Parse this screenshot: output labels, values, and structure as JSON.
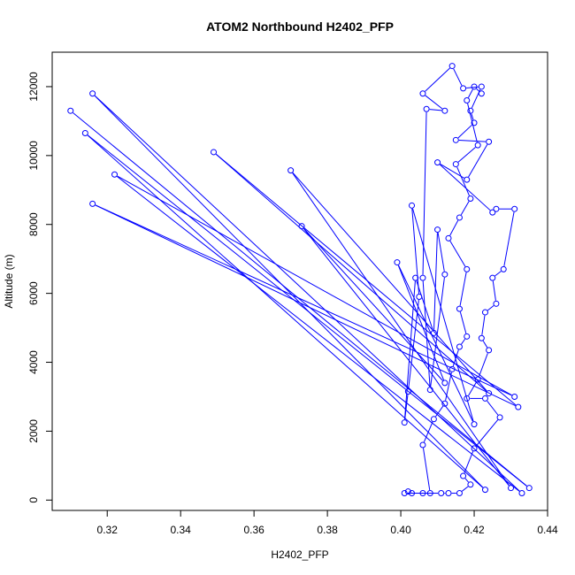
{
  "chart_data": {
    "type": "scatter",
    "title": "ATOM2 Northbound H2402_PFP",
    "xlabel": "H2402_PFP",
    "ylabel": "Altitude (m)",
    "xlim": [
      0.305,
      0.44
    ],
    "ylim": [
      -300,
      13000
    ],
    "xticks": [
      0.32,
      0.34,
      0.36,
      0.38,
      0.4,
      0.42,
      0.44
    ],
    "xtick_labels": [
      "0.32",
      "0.34",
      "0.36",
      "0.38",
      "0.40",
      "0.42",
      "0.44"
    ],
    "yticks": [
      0,
      2000,
      4000,
      6000,
      8000,
      10000,
      12000
    ],
    "ytick_labels": [
      "0",
      "2000",
      "4000",
      "6000",
      "8000",
      "10000",
      "12000"
    ],
    "grid": false,
    "legend": "none",
    "series_color": "#0000ff",
    "series": [
      {
        "points": [
          [
            0.31,
            11300
          ],
          [
            0.435,
            350
          ],
          [
            0.314,
            10650
          ],
          [
            0.423,
            300
          ],
          [
            0.316,
            11800
          ],
          [
            0.433,
            200
          ],
          [
            0.322,
            9450
          ],
          [
            0.431,
            3000
          ],
          [
            0.316,
            8600
          ],
          [
            0.432,
            2700
          ],
          [
            0.349,
            10100
          ],
          [
            0.424,
            3100
          ],
          [
            0.37,
            9570
          ],
          [
            0.43,
            350
          ],
          [
            0.373,
            7950
          ],
          [
            0.412,
            3400
          ],
          [
            0.399,
            6900
          ],
          [
            0.42,
            2200
          ],
          [
            0.403,
            8550
          ],
          [
            0.405,
            5900
          ],
          [
            0.402,
            3150
          ],
          [
            0.401,
            2250
          ],
          [
            0.404,
            6450
          ],
          [
            0.409,
            4850
          ],
          [
            0.41,
            7850
          ],
          [
            0.412,
            6550
          ],
          [
            0.408,
            3200
          ],
          [
            0.406,
            6450
          ],
          [
            0.407,
            11350
          ],
          [
            0.412,
            11300
          ],
          [
            0.406,
            11800
          ],
          [
            0.414,
            12600
          ],
          [
            0.417,
            11950
          ],
          [
            0.422,
            12000
          ],
          [
            0.419,
            11300
          ],
          [
            0.42,
            10950
          ],
          [
            0.415,
            10450
          ],
          [
            0.424,
            10400
          ],
          [
            0.418,
            9300
          ],
          [
            0.41,
            9800
          ],
          [
            0.425,
            8350
          ],
          [
            0.426,
            8450
          ],
          [
            0.431,
            8450
          ],
          [
            0.428,
            6700
          ],
          [
            0.425,
            6450
          ],
          [
            0.426,
            5700
          ],
          [
            0.423,
            5450
          ],
          [
            0.422,
            4700
          ],
          [
            0.424,
            4350
          ],
          [
            0.421,
            3500
          ],
          [
            0.418,
            2950
          ],
          [
            0.423,
            2950
          ],
          [
            0.427,
            2400
          ],
          [
            0.42,
            1500
          ],
          [
            0.417,
            700
          ],
          [
            0.419,
            450
          ],
          [
            0.416,
            200
          ],
          [
            0.413,
            200
          ],
          [
            0.411,
            200
          ],
          [
            0.406,
            200
          ],
          [
            0.403,
            200
          ],
          [
            0.402,
            250
          ],
          [
            0.401,
            200
          ],
          [
            0.408,
            200
          ],
          [
            0.406,
            1600
          ],
          [
            0.409,
            2350
          ],
          [
            0.412,
            2800
          ],
          [
            0.414,
            3800
          ],
          [
            0.416,
            4450
          ],
          [
            0.418,
            4750
          ],
          [
            0.416,
            5550
          ],
          [
            0.418,
            6700
          ],
          [
            0.413,
            7600
          ],
          [
            0.416,
            8200
          ],
          [
            0.419,
            8750
          ],
          [
            0.415,
            9750
          ],
          [
            0.421,
            10300
          ],
          [
            0.418,
            11600
          ],
          [
            0.42,
            12000
          ],
          [
            0.422,
            11800
          ]
        ]
      }
    ]
  }
}
